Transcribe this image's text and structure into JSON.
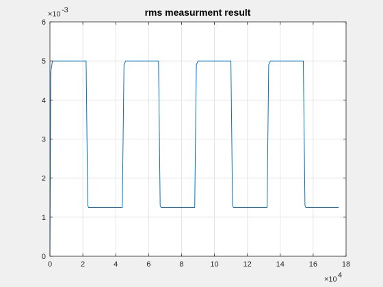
{
  "chart_data": {
    "type": "line",
    "title": "rms measurment result",
    "xlabel": "",
    "ylabel": "",
    "xlim": [
      0,
      18
    ],
    "ylim": [
      0,
      6
    ],
    "x_ticks": [
      "0",
      "2",
      "4",
      "6",
      "8",
      "10",
      "12",
      "14",
      "16",
      "18"
    ],
    "y_ticks": [
      "0",
      "1",
      "2",
      "3",
      "4",
      "5",
      "6"
    ],
    "x_exponent": {
      "base": "×10",
      "power": "4"
    },
    "y_exponent": {
      "base": "×10",
      "power": "-3"
    },
    "grid": true,
    "series": [
      {
        "color": "#0072BD",
        "x": [
          0,
          0.05,
          0.15,
          0.3,
          2.2,
          2.3,
          2.35,
          4.4,
          4.5,
          4.6,
          6.6,
          6.7,
          6.75,
          8.8,
          8.9,
          9.0,
          11.0,
          11.1,
          11.15,
          13.2,
          13.3,
          13.4,
          15.4,
          15.5,
          15.55,
          17.55
        ],
        "y": [
          0,
          4.7,
          5.0,
          5.0,
          5.0,
          1.3,
          1.25,
          1.25,
          4.9,
          5.0,
          5.0,
          1.3,
          1.25,
          1.25,
          4.9,
          5.0,
          5.0,
          1.3,
          1.25,
          1.25,
          4.9,
          5.0,
          5.0,
          1.3,
          1.25,
          1.25
        ]
      }
    ]
  },
  "colors": {
    "figure_bg": "#f0f0f0",
    "axes_bg": "#ffffff",
    "grid": "#dfdfdf",
    "axis_line": "#262626",
    "line": "#0072BD"
  }
}
